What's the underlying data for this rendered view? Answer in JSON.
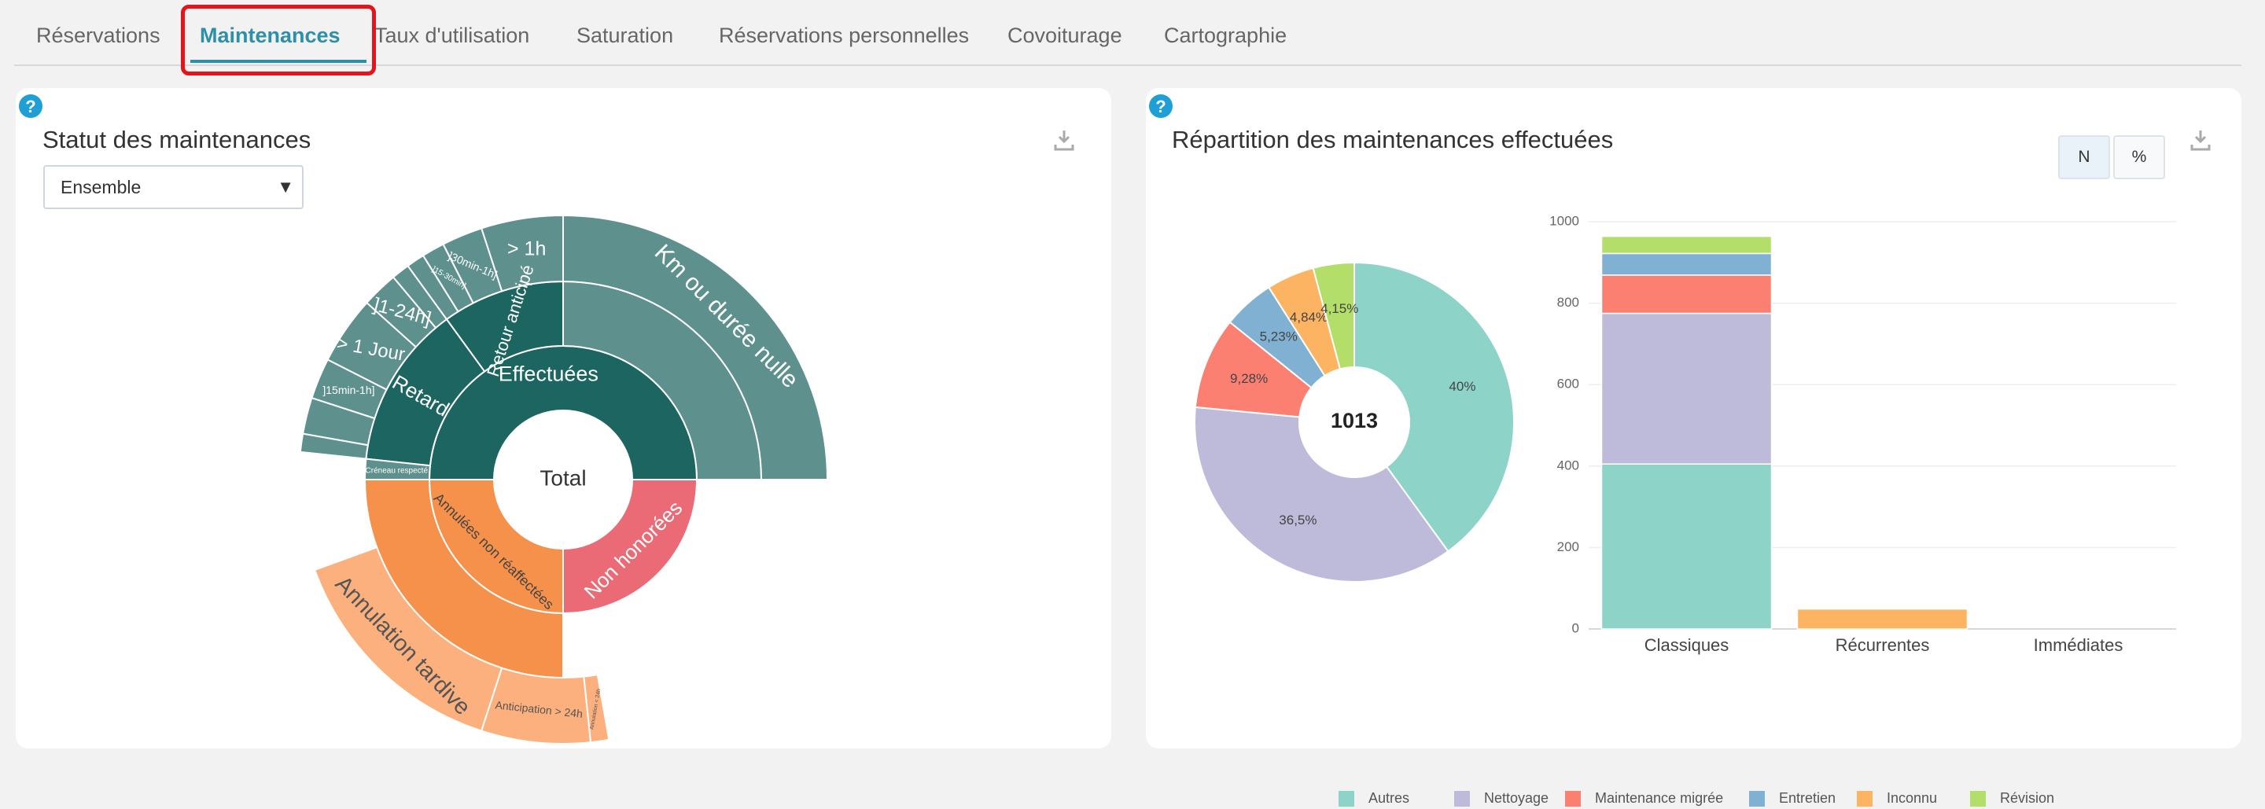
{
  "tabs": [
    {
      "label": "Réservations"
    },
    {
      "label": "Maintenances",
      "active": true
    },
    {
      "label": "Taux d'utilisation"
    },
    {
      "label": "Saturation"
    },
    {
      "label": "Réservations personnelles"
    },
    {
      "label": "Covoiturage"
    },
    {
      "label": "Cartographie"
    }
  ],
  "left_panel": {
    "help": "?",
    "title": "Statut des maintenances",
    "select_value": "Ensemble",
    "sunburst": {
      "center": "Total",
      "effectuees": "Effectuées",
      "km_nulle": "Km ou durée nulle",
      "retour_anticipe": "Retour anticipé",
      "gt_1h": "> 1h",
      "r30_1h": "]30min-1h]",
      "r15_30": "]15-30min]",
      "retard": "Retard",
      "r1_24h": "]1-24h]",
      "gt_1jour": "> 1 Jour",
      "r15min_1h": "]15min-1h]",
      "creneau": "Créneau respecté",
      "annulees": "Annulées non réaffectées",
      "annulation_tardive": "Annulation tardive",
      "anticipation": "Anticipation > 24h",
      "annulation_small": "Annulation < 24h",
      "non_honorees": "Non honorées"
    }
  },
  "right_panel": {
    "help": "?",
    "title": "Répartition des maintenances effectuées",
    "btn_n": "N",
    "btn_pct": "%",
    "donut_total": "1013",
    "colors": {
      "Autres": "#8dd3c7",
      "Nettoyage": "#bebada",
      "Maintenance migrée": "#fb8072",
      "Entretien": "#80b1d3",
      "Inconnu": "#fdb462",
      "Révision": "#b3de69"
    }
  },
  "chart_data": [
    {
      "type": "pie",
      "title": "",
      "center_label": "1013",
      "labels": [
        "Autres",
        "Nettoyage",
        "Maintenance migrée",
        "Entretien",
        "Inconnu",
        "Révision"
      ],
      "values": [
        40,
        36.5,
        9.28,
        5.23,
        4.84,
        4.15
      ],
      "value_labels": [
        "40%",
        "36,5%",
        "9,28%",
        "5,23%",
        "4,84%",
        "4,15%"
      ]
    },
    {
      "type": "bar",
      "stacked": true,
      "categories": [
        "Classiques",
        "Récurrentes",
        "Immédiates"
      ],
      "ylim": [
        0,
        1000
      ],
      "yticks": [
        0,
        200,
        400,
        600,
        800,
        1000
      ],
      "grid": true,
      "legend": "bottom",
      "series": [
        {
          "name": "Autres",
          "values": [
            405,
            0,
            0
          ]
        },
        {
          "name": "Nettoyage",
          "values": [
            370,
            0,
            0
          ]
        },
        {
          "name": "Maintenance migrée",
          "values": [
            94,
            0,
            0
          ]
        },
        {
          "name": "Entretien",
          "values": [
            53,
            0,
            0
          ]
        },
        {
          "name": "Inconnu",
          "values": [
            0,
            49,
            0
          ]
        },
        {
          "name": "Révision",
          "values": [
            42,
            0,
            0
          ]
        }
      ]
    }
  ]
}
